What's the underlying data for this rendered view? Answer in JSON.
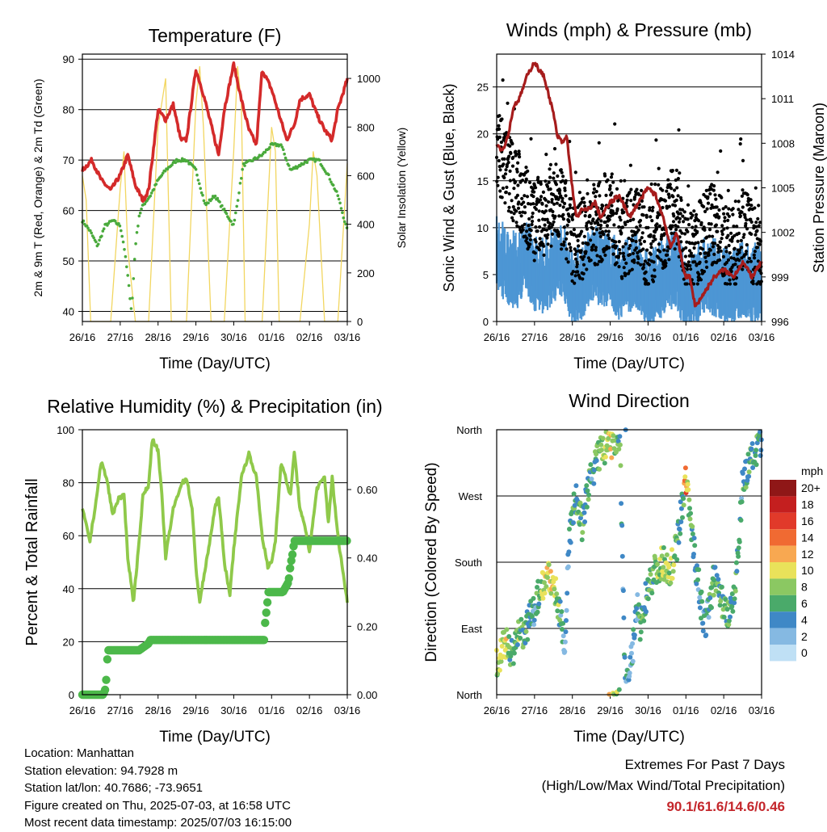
{
  "chart_data": [
    {
      "type": "line",
      "title": "Temperature (F)",
      "xlabel": "Time (Day/UTC)",
      "ylabel": "2m & 9m T (Red, Orange) & 2m Td (Green)",
      "ylabel_right": "Solar Insolation (Yellow)",
      "ylim": [
        38,
        91
      ],
      "ylim_right": [
        0,
        1100
      ],
      "yticks": [
        40,
        50,
        60,
        70,
        80,
        90
      ],
      "yticks_right": [
        0,
        200,
        400,
        600,
        800,
        1000
      ],
      "x_ticks": [
        "26/16",
        "27/16",
        "28/16",
        "29/16",
        "30/16",
        "01/16",
        "02/16",
        "03/16"
      ],
      "grid": true,
      "series": [
        {
          "name": "2m T",
          "color": "#d42a2a",
          "x": [
            0,
            0.25,
            0.5,
            0.75,
            1,
            1.2,
            1.4,
            1.6,
            1.75,
            2,
            2.2,
            2.4,
            2.6,
            2.75,
            3,
            3.2,
            3.4,
            3.6,
            3.75,
            4,
            4.2,
            4.4,
            4.6,
            4.75,
            5,
            5.2,
            5.4,
            5.6,
            5.75,
            6,
            6.2,
            6.4,
            6.6,
            6.75,
            7
          ],
          "values": [
            68,
            70,
            66,
            64,
            67,
            71,
            65,
            62,
            64,
            80,
            78,
            81,
            74,
            74,
            88,
            83,
            77,
            71,
            80,
            89,
            82,
            76,
            73,
            88,
            84,
            79,
            74,
            77,
            82,
            83,
            79,
            76,
            74,
            80,
            86
          ]
        },
        {
          "name": "2m Td",
          "color": "#4aaa3c",
          "x": [
            0,
            0.2,
            0.4,
            0.6,
            0.8,
            1,
            1.1,
            1.2,
            1.3,
            1.4,
            1.5,
            1.6,
            1.8,
            2,
            2.2,
            2.5,
            2.75,
            3,
            3.25,
            3.5,
            3.75,
            4,
            4.25,
            4.5,
            4.75,
            5,
            5.25,
            5.5,
            5.75,
            6,
            6.25,
            6.5,
            6.75,
            7
          ],
          "values": [
            58,
            56,
            53,
            57,
            58,
            57,
            53,
            47,
            40,
            53,
            59,
            61,
            63,
            66,
            68,
            70,
            70,
            68,
            61,
            63,
            60,
            57,
            69,
            70,
            71,
            73,
            73,
            68,
            69,
            70,
            70,
            67,
            63,
            56
          ]
        },
        {
          "name": "Solar Insolation",
          "color": "#f2d660",
          "axis": "right",
          "x": [
            0,
            0.1,
            0.22,
            0.35,
            0.5,
            0.6,
            0.75,
            1,
            1.1,
            1.2,
            1.4,
            1.6,
            1.75,
            2,
            2.1,
            2.2,
            2.35,
            2.5,
            2.6,
            2.75,
            3,
            3.1,
            3.2,
            3.4,
            3.5,
            3.6,
            3.75,
            4,
            4.1,
            4.2,
            4.3,
            4.5,
            4.6,
            4.75,
            5,
            5.1,
            5.2,
            5.4,
            5.5,
            5.6,
            5.75,
            6,
            6.1,
            6.2,
            6.4,
            6.5,
            6.6,
            6.75,
            7
          ],
          "values": [
            600,
            500,
            0,
            0,
            0,
            0,
            0,
            550,
            700,
            300,
            0,
            0,
            0,
            800,
            900,
            1000,
            0,
            0,
            0,
            0,
            900,
            1050,
            800,
            0,
            0,
            0,
            0,
            700,
            1050,
            900,
            0,
            0,
            0,
            0,
            800,
            700,
            0,
            0,
            0,
            0,
            0,
            400,
            700,
            600,
            0,
            0,
            0,
            0,
            650
          ]
        }
      ]
    },
    {
      "type": "scatter",
      "title": "Winds (mph) & Pressure (mb)",
      "xlabel": "Time (Day/UTC)",
      "ylabel": "Sonic Wind & Gust (Blue, Black)",
      "ylabel_right": "Station Pressure (Maroon)",
      "ylim": [
        0,
        28.5
      ],
      "ylim_right": [
        996,
        1014
      ],
      "yticks": [
        0,
        5,
        10,
        15,
        20,
        25
      ],
      "yticks_right": [
        996,
        999,
        1002,
        1005,
        1008,
        1011,
        1014
      ],
      "x_ticks": [
        "26/16",
        "27/16",
        "28/16",
        "29/16",
        "30/16",
        "01/16",
        "02/16",
        "03/16"
      ],
      "grid": true,
      "series": [
        {
          "name": "Station Pressure",
          "color": "#a61c1c",
          "axis": "right",
          "x": [
            0,
            0.15,
            0.3,
            0.45,
            0.6,
            0.8,
            1,
            1.1,
            1.25,
            1.4,
            1.5,
            1.6,
            1.75,
            1.85,
            2,
            2.1,
            2.25,
            2.4,
            2.6,
            2.75,
            3,
            3.25,
            3.5,
            3.75,
            4,
            4.2,
            4.4,
            4.6,
            4.75,
            4.9,
            5,
            5.1,
            5.25,
            5.5,
            5.75,
            6,
            6.25,
            6.5,
            6.75,
            7
          ],
          "values": [
            1008,
            1007.5,
            1008.5,
            1010.5,
            1011,
            1012.5,
            1013.5,
            1013,
            1012.5,
            1011,
            1010,
            1008.5,
            1008,
            1008.5,
            1005,
            1003,
            1003.5,
            1003.5,
            1004,
            1003,
            1004,
            1004.5,
            1003,
            1004,
            1005,
            1004.5,
            1003,
            1001,
            1002,
            1000,
            999,
            999,
            997,
            998,
            999,
            999.5,
            999,
            1000,
            999,
            1000
          ]
        },
        {
          "name": "Sonic Wind",
          "color": "#4d96d4",
          "x": [
            0,
            0.25,
            0.5,
            0.75,
            1,
            1.25,
            1.5,
            1.75,
            2,
            2.25,
            2.5,
            2.75,
            3,
            3.25,
            3.5,
            3.75,
            4,
            4.25,
            4.5,
            4.75,
            5,
            5.25,
            5.5,
            5.75,
            6,
            6.25,
            6.5,
            6.75,
            7
          ],
          "values": [
            7,
            6,
            5,
            7,
            5,
            4.5,
            6,
            6.5,
            3.5,
            4,
            6,
            5.5,
            5.5,
            4,
            5,
            5,
            3,
            4,
            5,
            5.5,
            2.5,
            3.5,
            5,
            4.5,
            3.5,
            3.5,
            4.5,
            4,
            4
          ]
        },
        {
          "name": "Gust",
          "color": "#000000",
          "x": [
            0,
            0.25,
            0.5,
            0.75,
            1,
            1.25,
            1.5,
            1.75,
            2,
            2.25,
            2.5,
            2.75,
            3,
            3.25,
            3.5,
            3.75,
            4,
            4.25,
            4.5,
            4.75,
            5,
            5.25,
            5.5,
            5.75,
            6,
            6.25,
            6.5,
            6.75,
            7
          ],
          "values": [
            19,
            17,
            15,
            13,
            11,
            12,
            13,
            12,
            9,
            9,
            11,
            11,
            13,
            9,
            10,
            11,
            8,
            10,
            11,
            13,
            7,
            8,
            10,
            11,
            9,
            8,
            10,
            9,
            8
          ]
        }
      ]
    },
    {
      "type": "line",
      "title": "Relative Humidity (%) & Precipitation (in)",
      "xlabel": "Time (Day/UTC)",
      "ylabel": "Percent & Total Rainfall",
      "ylim": [
        0,
        100
      ],
      "ylim_right": [
        0,
        0.775
      ],
      "yticks": [
        0,
        20,
        40,
        60,
        80,
        100
      ],
      "yticks_right": [
        "0.00",
        "0.20",
        "0.40",
        "0.60"
      ],
      "x_ticks": [
        "26/16",
        "27/16",
        "28/16",
        "29/16",
        "30/16",
        "01/16",
        "02/16",
        "03/16"
      ],
      "grid": true,
      "series": [
        {
          "name": "Relative Humidity",
          "color": "#8fc94a",
          "x": [
            0,
            0.2,
            0.35,
            0.5,
            0.65,
            0.8,
            0.95,
            1.1,
            1.2,
            1.35,
            1.5,
            1.6,
            1.75,
            1.85,
            2,
            2.1,
            2.2,
            2.4,
            2.6,
            2.75,
            2.9,
            3,
            3.1,
            3.3,
            3.5,
            3.6,
            3.75,
            3.9,
            4,
            4.2,
            4.4,
            4.6,
            4.75,
            4.9,
            5,
            5.1,
            5.25,
            5.5,
            5.6,
            5.75,
            5.9,
            6,
            6.2,
            6.4,
            6.5,
            6.6,
            6.75,
            6.9,
            7
          ],
          "values": [
            70,
            58,
            72,
            88,
            81,
            68,
            74,
            75,
            52,
            35,
            58,
            75,
            79,
            97,
            92,
            75,
            52,
            70,
            79,
            82,
            70,
            48,
            35,
            52,
            70,
            75,
            50,
            38,
            55,
            82,
            91,
            82,
            60,
            48,
            50,
            58,
            88,
            75,
            92,
            70,
            62,
            54,
            78,
            82,
            65,
            82,
            60,
            45,
            35
          ]
        },
        {
          "name": "Total Precipitation",
          "color": "#4cb84a",
          "axis": "right",
          "x": [
            0,
            0.55,
            0.62,
            0.65,
            0.68,
            0.7,
            1.5,
            1.75,
            1.8,
            4.8,
            4.82,
            4.86,
            4.9,
            4.92,
            5.3,
            5.45,
            5.5,
            5.55,
            5.6,
            7
          ],
          "values": [
            0,
            0,
            0.02,
            0.09,
            0.13,
            0.13,
            0.13,
            0.15,
            0.16,
            0.16,
            0.2,
            0.24,
            0.28,
            0.3,
            0.3,
            0.33,
            0.38,
            0.41,
            0.45,
            0.45
          ]
        }
      ]
    },
    {
      "type": "scatter",
      "title": "Wind Direction",
      "xlabel": "Time (Day/UTC)",
      "ylabel": "Direction (Colored By Speed)",
      "ylim": [
        0,
        360
      ],
      "yticks": [
        "North",
        "East",
        "South",
        "West",
        "North"
      ],
      "x_ticks": [
        "26/16",
        "27/16",
        "28/16",
        "29/16",
        "30/16",
        "01/16",
        "02/16",
        "03/16"
      ],
      "grid": true,
      "legend_title": "mph",
      "legend_position": "right",
      "legend_labels": [
        "20+",
        "18",
        "16",
        "14",
        "12",
        "10",
        "8",
        "6",
        "4",
        "2",
        "0"
      ],
      "legend_colors": [
        "#8f1717",
        "#c41f1f",
        "#e13a2a",
        "#f06a32",
        "#f8a851",
        "#e9e25a",
        "#8bc862",
        "#4aaa6a",
        "#3f88c6",
        "#85b9e2",
        "#bfe0f5"
      ],
      "series": [
        {
          "name": "direction",
          "x": [
            0,
            0.2,
            0.4,
            0.6,
            0.8,
            1,
            1.2,
            1.4,
            1.6,
            1.75,
            1.8,
            1.9,
            2,
            2.1,
            2.25,
            2.5,
            2.75,
            3,
            3.25,
            3.4,
            3.6,
            3.7,
            3.8,
            4,
            4.2,
            4.4,
            4.6,
            4.75,
            4.9,
            5,
            5.1,
            5.25,
            5.5,
            5.75,
            6,
            6.1,
            6.3,
            6.5,
            6.75,
            7
          ],
          "values": [
            45,
            70,
            60,
            80,
            90,
            120,
            150,
            160,
            130,
            90,
            60,
            200,
            240,
            270,
            230,
            300,
            330,
            340,
            350,
            10,
            60,
            120,
            90,
            150,
            170,
            180,
            170,
            200,
            260,
            290,
            250,
            180,
            90,
            160,
            120,
            110,
            140,
            290,
            320,
            340
          ],
          "speeds": [
            8,
            10,
            6,
            7,
            5,
            4,
            9,
            10,
            8,
            3,
            2,
            4,
            6,
            5,
            6,
            5,
            7,
            10,
            6,
            3,
            4,
            4,
            5,
            6,
            7,
            8,
            9,
            6,
            5,
            14,
            6,
            5,
            4,
            6,
            6,
            7,
            5,
            5,
            6,
            5
          ]
        }
      ]
    }
  ],
  "footer": {
    "location": "Location: Manhattan",
    "elevation": "Station elevation: 94.7928 m",
    "latlon": "Station lat/lon: 40.7686; -73.9651",
    "created": "Figure created on Thu, 2025-07-03, at 16:58 UTC",
    "recent": "Most recent data timestamp: 2025/07/03 16:15:00"
  },
  "extremes": {
    "title": "Extremes For Past 7 Days",
    "subtitle": "(High/Low/Max Wind/Total Precipitation)",
    "values": "90.1/61.6/14.6/0.46",
    "values_color": "#c4262b"
  }
}
